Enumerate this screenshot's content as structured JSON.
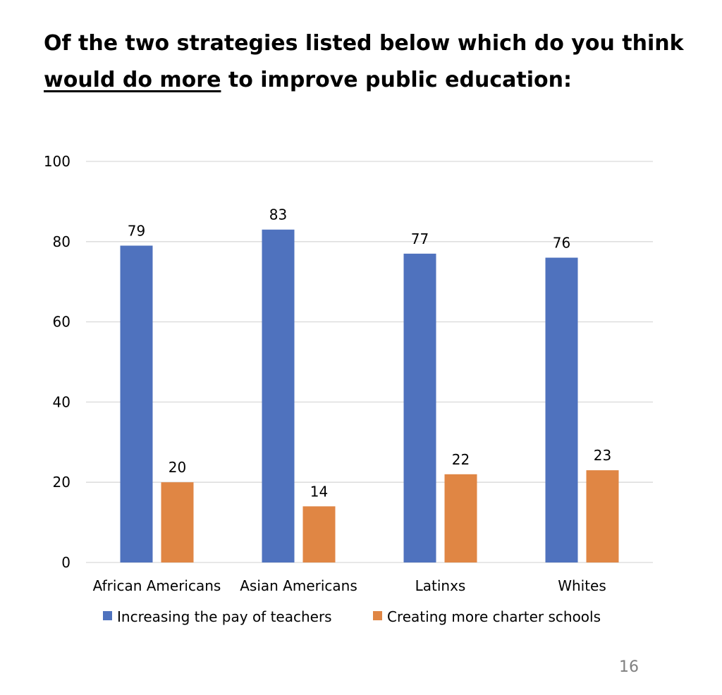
{
  "slide": {
    "title_part1": "Of the two strategies listed below which do you think",
    "title_emphasis": "would do more",
    "title_part2": " to improve public education:",
    "page_number": "16"
  },
  "chart_data": {
    "type": "bar",
    "categories": [
      "African Americans",
      "Asian Americans",
      "Latinxs",
      "Whites"
    ],
    "series": [
      {
        "name": "Increasing the pay of teachers",
        "values": [
          79,
          83,
          77,
          76
        ],
        "color": "#4F72BE"
      },
      {
        "name": "Creating more charter schools",
        "values": [
          20,
          14,
          22,
          23
        ],
        "color": "#E08644"
      }
    ],
    "ylim": [
      0,
      100
    ],
    "yticks": [
      0,
      20,
      40,
      60,
      80,
      100
    ],
    "grid": true,
    "legend": "bottom",
    "data_labels": true
  }
}
